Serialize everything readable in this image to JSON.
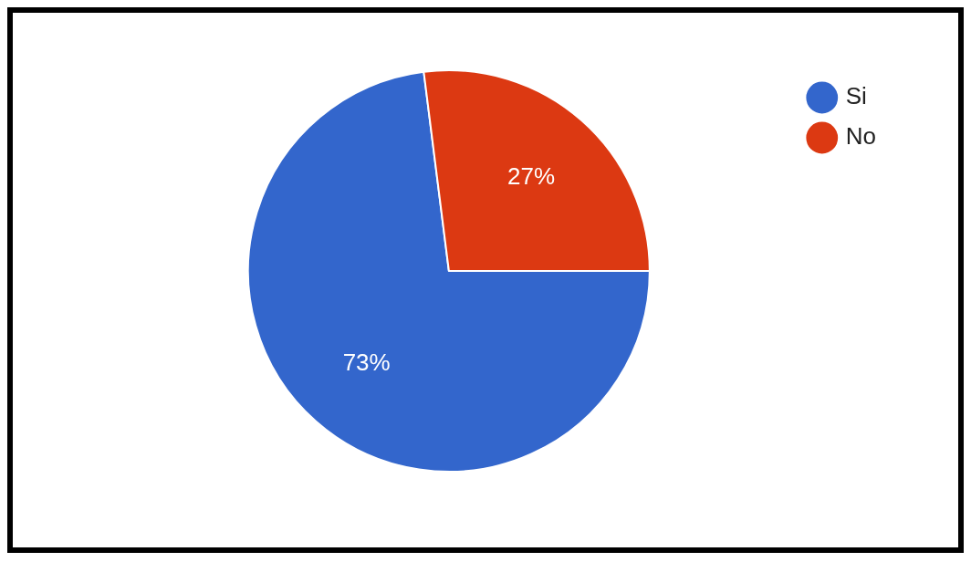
{
  "chart_data": {
    "type": "pie",
    "categories": [
      "Si",
      "No"
    ],
    "values": [
      73,
      27
    ],
    "colors": [
      "#3366cc",
      "#dc3912"
    ],
    "value_labels": [
      "73%",
      "27%"
    ],
    "legend": "top right"
  }
}
